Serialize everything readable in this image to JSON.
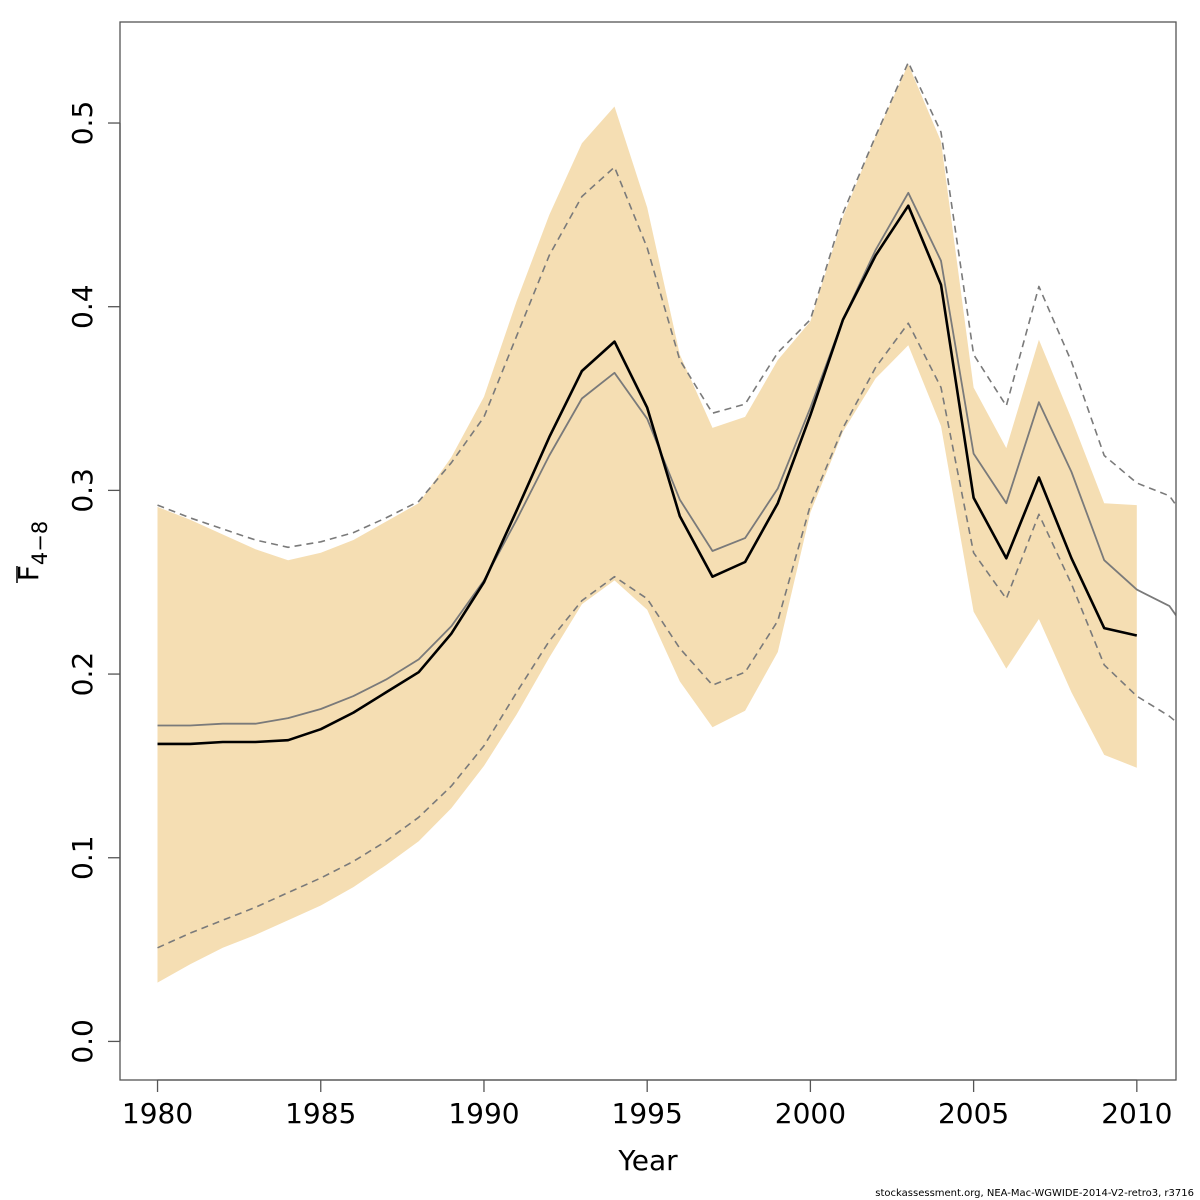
{
  "chart_data": {
    "type": "area",
    "xlabel": "Year",
    "ylabel_main": "F",
    "ylabel_sub": "4−8",
    "xlim": [
      1978.85,
      2011.2
    ],
    "ylim": [
      -0.021,
      0.555
    ],
    "x_ticks": [
      1980,
      1985,
      1990,
      1995,
      2000,
      2005,
      2010
    ],
    "y_ticks": [
      0.0,
      0.1,
      0.2,
      0.3,
      0.4,
      0.5
    ],
    "x_tick_labels": [
      "1980",
      "1985",
      "1990",
      "1995",
      "2000",
      "2005",
      "2010"
    ],
    "y_tick_labels": [
      "0.0",
      "0.1",
      "0.2",
      "0.3",
      "0.4",
      "0.5"
    ],
    "grid": false,
    "legend": "none",
    "colors": {
      "band": "#f5deb3",
      "main_line": "#000000",
      "retro_line": "#7a7a7a",
      "retro_ci": "#7a7a7a"
    },
    "band": {
      "x": [
        1980,
        1981,
        1982,
        1983,
        1984,
        1985,
        1986,
        1987,
        1988,
        1989,
        1990,
        1991,
        1992,
        1993,
        1994,
        1995,
        1996,
        1997,
        1998,
        1999,
        2000,
        2001,
        2002,
        2003,
        2004,
        2005,
        2006,
        2007,
        2008,
        2009,
        2010
      ],
      "upper": [
        0.291,
        0.284,
        0.276,
        0.268,
        0.262,
        0.266,
        0.273,
        0.283,
        0.293,
        0.318,
        0.351,
        0.403,
        0.45,
        0.489,
        0.509,
        0.454,
        0.374,
        0.334,
        0.34,
        0.371,
        0.392,
        0.449,
        0.493,
        0.532,
        0.49,
        0.356,
        0.323,
        0.382,
        0.339,
        0.293,
        0.292
      ],
      "lower": [
        0.032,
        0.042,
        0.051,
        0.058,
        0.066,
        0.074,
        0.084,
        0.096,
        0.109,
        0.127,
        0.15,
        0.178,
        0.209,
        0.238,
        0.251,
        0.235,
        0.196,
        0.171,
        0.18,
        0.212,
        0.288,
        0.332,
        0.361,
        0.379,
        0.335,
        0.234,
        0.203,
        0.23,
        0.19,
        0.156,
        0.149
      ]
    },
    "series": [
      {
        "x": [
          1980,
          1981,
          1982,
          1983,
          1984,
          1985,
          1986,
          1987,
          1988,
          1989,
          1990,
          1991,
          1992,
          1993,
          1994,
          1995,
          1996,
          1997,
          1998,
          1999,
          2000,
          2001,
          2002,
          2003,
          2004,
          2005,
          2006,
          2007,
          2008,
          2009,
          2010
        ],
        "values": [
          0.162,
          0.162,
          0.163,
          0.163,
          0.164,
          0.17,
          0.179,
          0.19,
          0.201,
          0.222,
          0.25,
          0.289,
          0.329,
          0.365,
          0.381,
          0.345,
          0.286,
          0.253,
          0.261,
          0.293,
          0.341,
          0.393,
          0.428,
          0.455,
          0.412,
          0.296,
          0.263,
          0.307,
          0.263,
          0.225,
          0.221
        ],
        "style": "main"
      },
      {
        "x": [
          1980,
          1981,
          1982,
          1983,
          1984,
          1985,
          1986,
          1987,
          1988,
          1989,
          1990,
          1991,
          1992,
          1993,
          1994,
          1995,
          1996,
          1997,
          1998,
          1999,
          2000,
          2001,
          2002,
          2003,
          2004,
          2005,
          2006,
          2007,
          2008,
          2009,
          2010,
          2011,
          2011.2
        ],
        "values": [
          0.172,
          0.172,
          0.173,
          0.173,
          0.176,
          0.181,
          0.188,
          0.197,
          0.208,
          0.226,
          0.251,
          0.284,
          0.319,
          0.35,
          0.364,
          0.339,
          0.295,
          0.267,
          0.274,
          0.301,
          0.345,
          0.393,
          0.431,
          0.462,
          0.425,
          0.32,
          0.293,
          0.348,
          0.31,
          0.262,
          0.246,
          0.237,
          0.232
        ],
        "style": "retro"
      },
      {
        "x": [
          1980,
          1981,
          1982,
          1983,
          1984,
          1985,
          1986,
          1987,
          1988,
          1989,
          1990,
          1991,
          1992,
          1993,
          1994,
          1995,
          1996,
          1997,
          1998,
          1999,
          2000,
          2001,
          2002,
          2003,
          2004,
          2005,
          2006,
          2007,
          2008,
          2009,
          2010,
          2011,
          2011.2
        ],
        "values": [
          0.292,
          0.285,
          0.279,
          0.273,
          0.269,
          0.272,
          0.277,
          0.285,
          0.294,
          0.315,
          0.34,
          0.384,
          0.428,
          0.46,
          0.476,
          0.432,
          0.371,
          0.342,
          0.347,
          0.375,
          0.393,
          0.451,
          0.493,
          0.533,
          0.495,
          0.374,
          0.346,
          0.411,
          0.37,
          0.319,
          0.304,
          0.297,
          0.292
        ],
        "style": "retro-dashed"
      },
      {
        "x": [
          1980,
          1981,
          1982,
          1983,
          1984,
          1985,
          1986,
          1987,
          1988,
          1989,
          1990,
          1991,
          1992,
          1993,
          1994,
          1995,
          1996,
          1997,
          1998,
          1999,
          2000,
          2001,
          2002,
          2003,
          2004,
          2005,
          2006,
          2007,
          2008,
          2009,
          2010,
          2011,
          2011.2
        ],
        "values": [
          0.051,
          0.059,
          0.066,
          0.073,
          0.081,
          0.089,
          0.098,
          0.109,
          0.122,
          0.139,
          0.161,
          0.19,
          0.218,
          0.24,
          0.253,
          0.241,
          0.214,
          0.194,
          0.201,
          0.229,
          0.292,
          0.334,
          0.367,
          0.391,
          0.356,
          0.266,
          0.241,
          0.287,
          0.249,
          0.205,
          0.188,
          0.177,
          0.174
        ],
        "style": "retro-dashed"
      }
    ]
  },
  "footer": {
    "source": "stockassessment.org, NEA-Mac-WGWIDE-2014-V2-retro3, r3716"
  }
}
